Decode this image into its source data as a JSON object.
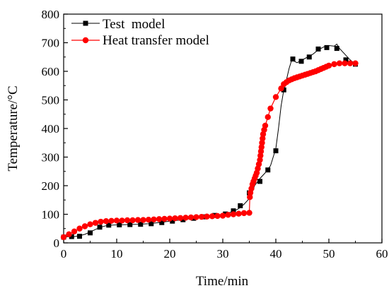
{
  "chart_data": {
    "type": "line",
    "xlabel": "Time/min",
    "ylabel": "Temperature/°C",
    "xlim": [
      0,
      60
    ],
    "ylim": [
      0,
      800
    ],
    "xticks": [
      0,
      10,
      20,
      30,
      40,
      50,
      60
    ],
    "yticks": [
      0,
      100,
      200,
      300,
      400,
      500,
      600,
      700,
      800
    ],
    "grid": false,
    "legend_position": "top-left",
    "series": [
      {
        "name": "Test  model",
        "color": "#000000",
        "marker": "square",
        "line": [
          [
            0,
            20
          ],
          [
            1,
            22
          ],
          [
            2,
            22
          ],
          [
            3,
            25
          ],
          [
            4,
            30
          ],
          [
            5,
            38
          ],
          [
            6,
            47
          ],
          [
            7,
            55
          ],
          [
            8,
            60
          ],
          [
            9,
            62
          ],
          [
            10,
            63
          ],
          [
            12,
            64
          ],
          [
            14,
            65
          ],
          [
            16,
            67
          ],
          [
            18,
            71
          ],
          [
            20,
            76
          ],
          [
            22,
            80
          ],
          [
            24,
            85
          ],
          [
            26,
            90
          ],
          [
            28,
            95
          ],
          [
            30,
            100
          ],
          [
            31,
            105
          ],
          [
            32,
            110
          ],
          [
            33,
            120
          ],
          [
            34,
            135
          ],
          [
            35,
            155
          ],
          [
            35.5,
            175
          ],
          [
            36,
            200
          ],
          [
            37,
            225
          ],
          [
            38,
            245
          ],
          [
            39,
            270
          ],
          [
            39.5,
            300
          ],
          [
            40,
            330
          ],
          [
            40.5,
            400
          ],
          [
            41,
            480
          ],
          [
            41.5,
            535
          ],
          [
            42,
            570
          ],
          [
            42.5,
            610
          ],
          [
            43,
            640
          ],
          [
            44,
            630
          ],
          [
            45,
            640
          ],
          [
            46,
            650
          ],
          [
            47,
            660
          ],
          [
            48,
            675
          ],
          [
            49,
            685
          ],
          [
            50,
            690
          ],
          [
            51,
            688
          ],
          [
            51.5,
            695
          ],
          [
            52,
            680
          ],
          [
            53,
            660
          ],
          [
            54,
            640
          ],
          [
            55,
            625
          ]
        ],
        "markers": [
          [
            0,
            20
          ],
          [
            1.5,
            22
          ],
          [
            3,
            23
          ],
          [
            5,
            35
          ],
          [
            6.8,
            55
          ],
          [
            8.5,
            62
          ],
          [
            10.5,
            63
          ],
          [
            12.5,
            64
          ],
          [
            14.5,
            65
          ],
          [
            16.5,
            67
          ],
          [
            18.5,
            71
          ],
          [
            20.5,
            76
          ],
          [
            22.5,
            81
          ],
          [
            24.5,
            86
          ],
          [
            26.5,
            91
          ],
          [
            28.5,
            96
          ],
          [
            30.5,
            101
          ],
          [
            32,
            112
          ],
          [
            33.3,
            130
          ],
          [
            35,
            175
          ],
          [
            37,
            215
          ],
          [
            38.5,
            255
          ],
          [
            40,
            322
          ],
          [
            41.5,
            535
          ],
          [
            43.2,
            643
          ],
          [
            44.8,
            635
          ],
          [
            46.3,
            650
          ],
          [
            48,
            678
          ],
          [
            49.6,
            683
          ],
          [
            51.5,
            680
          ],
          [
            53.2,
            640
          ],
          [
            55,
            625
          ]
        ]
      },
      {
        "name": "Heat transfer model",
        "color": "#ff0000",
        "marker": "circle",
        "points": [
          [
            0,
            20
          ],
          [
            1,
            30
          ],
          [
            2,
            40
          ],
          [
            3,
            50
          ],
          [
            4,
            58
          ],
          [
            5,
            65
          ],
          [
            6,
            70
          ],
          [
            7,
            74
          ],
          [
            8,
            76
          ],
          [
            9,
            77
          ],
          [
            10,
            78
          ],
          [
            11,
            78
          ],
          [
            12,
            79
          ],
          [
            13,
            79
          ],
          [
            14,
            80
          ],
          [
            15,
            80
          ],
          [
            16,
            81
          ],
          [
            17,
            82
          ],
          [
            18,
            83
          ],
          [
            19,
            84
          ],
          [
            20,
            85
          ],
          [
            21,
            86
          ],
          [
            22,
            87
          ],
          [
            23,
            88
          ],
          [
            24,
            89
          ],
          [
            25,
            90
          ],
          [
            26,
            91
          ],
          [
            27,
            92
          ],
          [
            28,
            93
          ],
          [
            29,
            94
          ],
          [
            30,
            95
          ],
          [
            31,
            98
          ],
          [
            32,
            100
          ],
          [
            33,
            102
          ],
          [
            34,
            104
          ],
          [
            35,
            105
          ],
          [
            35.1,
            160
          ],
          [
            35.2,
            175
          ],
          [
            35.4,
            190
          ],
          [
            35.6,
            205
          ],
          [
            35.8,
            215
          ],
          [
            36,
            225
          ],
          [
            36.2,
            235
          ],
          [
            36.4,
            245
          ],
          [
            36.6,
            260
          ],
          [
            36.8,
            275
          ],
          [
            37,
            290
          ],
          [
            37.1,
            305
          ],
          [
            37.2,
            320
          ],
          [
            37.3,
            335
          ],
          [
            37.4,
            350
          ],
          [
            37.5,
            365
          ],
          [
            37.6,
            380
          ],
          [
            37.8,
            395
          ],
          [
            38,
            410
          ],
          [
            38.5,
            440
          ],
          [
            39,
            470
          ],
          [
            40,
            510
          ],
          [
            41,
            540
          ],
          [
            41.5,
            555
          ],
          [
            42,
            562
          ],
          [
            42.5,
            568
          ],
          [
            43,
            572
          ],
          [
            43.5,
            576
          ],
          [
            44,
            579
          ],
          [
            44.5,
            582
          ],
          [
            45,
            585
          ],
          [
            45.5,
            588
          ],
          [
            46,
            591
          ],
          [
            46.5,
            594
          ],
          [
            47,
            597
          ],
          [
            47.5,
            600
          ],
          [
            48,
            604
          ],
          [
            48.5,
            608
          ],
          [
            49,
            612
          ],
          [
            49.5,
            616
          ],
          [
            50,
            620
          ],
          [
            51,
            625
          ],
          [
            52,
            628
          ],
          [
            53,
            628
          ],
          [
            54,
            628
          ],
          [
            55,
            628
          ]
        ]
      }
    ]
  }
}
